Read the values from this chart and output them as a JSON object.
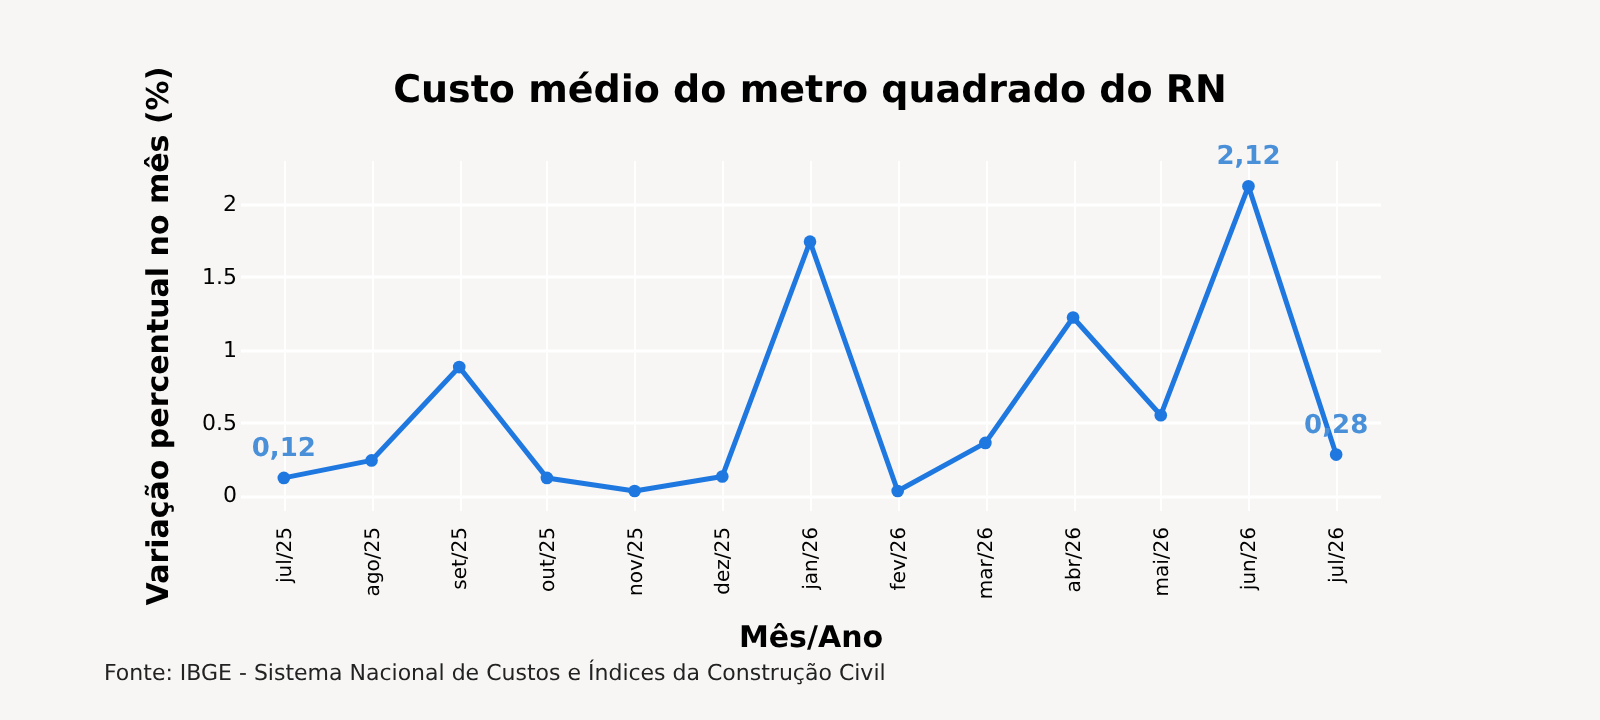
{
  "chart_data": {
    "type": "line",
    "title": "Custo médio do metro quadrado do RN",
    "xlabel": "Mês/Ano",
    "ylabel": "Variação percentual no mês (%)",
    "categories": [
      "jul/25",
      "ago/25",
      "set/25",
      "out/25",
      "nov/25",
      "dez/25",
      "jan/26",
      "fev/26",
      "mar/26",
      "abr/26",
      "mai/26",
      "jun/26",
      "jul/26"
    ],
    "series": [
      {
        "color": "#1f78e0",
        "values": [
          0.12,
          0.24,
          0.88,
          0.12,
          0.03,
          0.13,
          1.74,
          0.03,
          0.36,
          1.22,
          0.55,
          2.12,
          0.28
        ],
        "value_labels": [
          "0,12",
          null,
          null,
          null,
          null,
          null,
          null,
          null,
          null,
          null,
          null,
          "2,12",
          "0,28"
        ]
      }
    ],
    "ylim": [
      -0.1,
      2.3
    ],
    "yticks": [
      0,
      0.5,
      1,
      1.5,
      2
    ],
    "grid": true,
    "marker": "circle",
    "annotations": [
      "Fonte: IBGE - Sistema Nacional de Custos e Índices da Construção Civil"
    ]
  }
}
